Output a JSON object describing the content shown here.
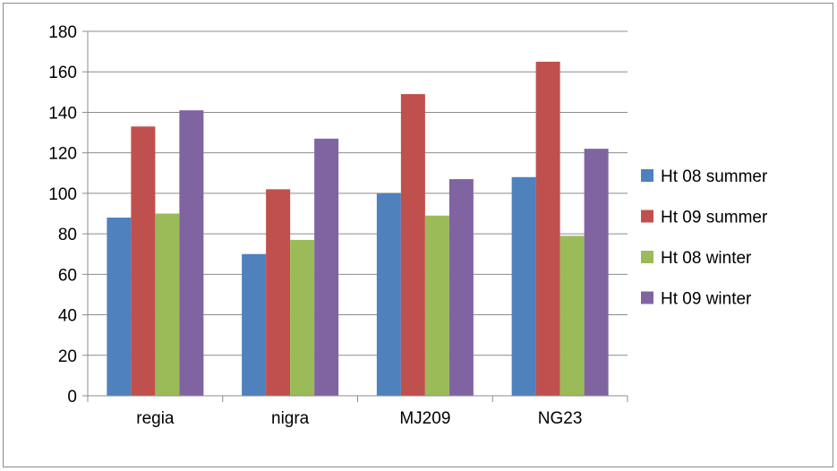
{
  "chart_data": {
    "type": "bar",
    "title": "",
    "xlabel": "",
    "ylabel": "",
    "categories": [
      "regia",
      "nigra",
      "MJ209",
      "NG23"
    ],
    "series": [
      {
        "name": "Ht 08 summer",
        "color": "#4f81bd",
        "values": [
          88,
          70,
          100,
          108
        ]
      },
      {
        "name": "Ht 09 summer",
        "color": "#c0504d",
        "values": [
          133,
          102,
          149,
          165
        ]
      },
      {
        "name": "Ht 08 winter",
        "color": "#9bbb59",
        "values": [
          90,
          77,
          89,
          79
        ]
      },
      {
        "name": "Ht 09 winter",
        "color": "#8064a2",
        "values": [
          141,
          127,
          107,
          122
        ]
      }
    ],
    "ylim": [
      0,
      180
    ],
    "yticks": [
      0,
      20,
      40,
      60,
      80,
      100,
      120,
      140,
      160,
      180
    ],
    "grid": true,
    "legend_position": "right"
  }
}
